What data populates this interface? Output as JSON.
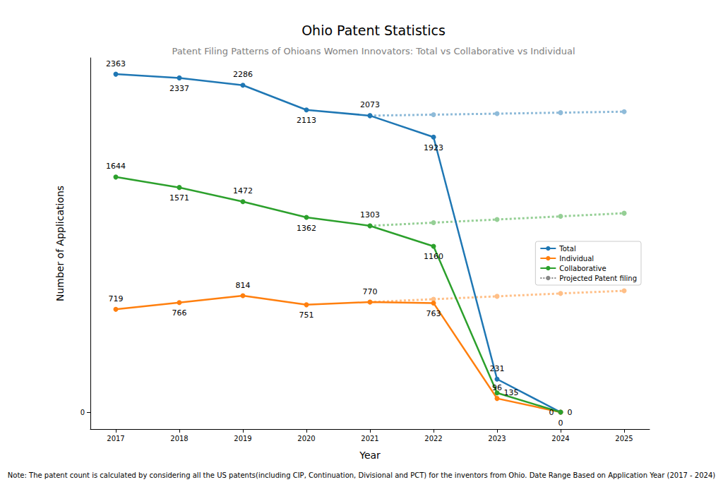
{
  "chart_data": {
    "type": "line",
    "title": "Ohio Patent Statistics",
    "subtitle": "Patent Filing Patterns of Ohioans Women Innovators: Total vs Collaborative vs Individual",
    "x_label": "Year",
    "y_label": "Number of Applications",
    "note": "Note: The patent count is calculated by considering all the US patents(including CIP, Continuation, Divisional and PCT) for the inventors from Ohio. Date Range Based on Application Year (2017 - 2024)",
    "x": [
      2017,
      2018,
      2019,
      2020,
      2021,
      2022,
      2023,
      2024,
      2025
    ],
    "xlim": [
      2016.6,
      2025.4
    ],
    "xticks": [
      2017,
      2018,
      2019,
      2020,
      2021,
      2022,
      2023,
      2024,
      2025
    ],
    "ylim": [
      -118,
      2477
    ],
    "yticks": [
      0
    ],
    "grid": false,
    "legend": "right",
    "data_labels": true,
    "series": [
      {
        "name": "Total",
        "color": "#1f77b4",
        "marker": "circle",
        "line_style": "solid",
        "data_labels": true,
        "values": [
          2363,
          2337,
          2286,
          2113,
          2073,
          1923,
          231,
          0,
          null
        ]
      },
      {
        "name": "Individual",
        "color": "#ff7f0e",
        "marker": "circle",
        "line_style": "solid",
        "data_labels": true,
        "values": [
          719,
          766,
          814,
          751,
          770,
          763,
          96,
          0,
          null
        ]
      },
      {
        "name": "Collaborative",
        "color": "#2ca02c",
        "marker": "circle",
        "line_style": "solid",
        "data_labels": true,
        "values": [
          1644,
          1571,
          1472,
          1362,
          1303,
          1160,
          135,
          0,
          null
        ]
      },
      {
        "name": "Projected Patent filing",
        "color": "#8fbbd9",
        "marker": "circle",
        "line_style": "dotted",
        "data_labels": false,
        "values": [
          null,
          null,
          null,
          null,
          2073,
          2080,
          2087,
          2094,
          2101
        ]
      },
      {
        "name": "Projected Patent filing",
        "color": "#95cf95",
        "marker": "circle",
        "line_style": "dotted",
        "data_labels": false,
        "values": [
          null,
          null,
          null,
          null,
          1303,
          1325,
          1347,
          1369,
          1391
        ]
      },
      {
        "name": "Projected Patent filing",
        "color": "#ffbf87",
        "marker": "circle",
        "line_style": "dotted",
        "data_labels": false,
        "values": [
          null,
          null,
          null,
          null,
          770,
          790,
          810,
          830,
          849
        ]
      }
    ]
  }
}
